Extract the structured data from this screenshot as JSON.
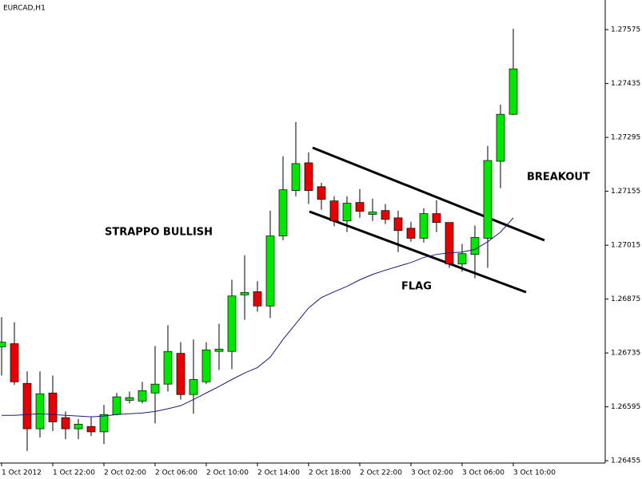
{
  "chart_data": {
    "type": "candlestick",
    "title": "EURCAD,H1",
    "categories": [
      "1 Oct 2012",
      null,
      null,
      null,
      "1 Oct 22:00",
      null,
      null,
      null,
      "2 Oct 02:00",
      null,
      null,
      null,
      "2 Oct 06:00",
      null,
      null,
      null,
      "2 Oct 10:00",
      null,
      null,
      null,
      "2 Oct 14:00",
      null,
      null,
      null,
      "2 Oct 18:00",
      null,
      null,
      null,
      "2 Oct 22:00",
      null,
      null,
      null,
      "3 Oct 02:00",
      null,
      null,
      null,
      "3 Oct 06:00",
      null,
      null,
      null,
      "3 Oct 10:00"
    ],
    "open": [
      1.26751,
      1.26759,
      1.26656,
      1.26538,
      1.26631,
      1.26567,
      1.26538,
      1.26544,
      1.2653,
      1.26575,
      1.26612,
      1.2661,
      1.26631,
      1.26654,
      1.26734,
      1.26627,
      1.2666,
      1.26739,
      1.26739,
      1.26886,
      1.26894,
      1.26857,
      1.27039,
      1.27157,
      1.27229,
      1.27167,
      1.2713,
      1.27078,
      1.27126,
      1.27095,
      1.27105,
      1.27086,
      1.27059,
      1.27033,
      1.27097,
      1.27074,
      1.26966,
      1.26991,
      1.27033,
      1.27233,
      1.27355
    ],
    "high": [
      1.26828,
      1.26815,
      1.26687,
      1.26687,
      1.26676,
      1.26583,
      1.26563,
      1.26569,
      1.266,
      1.26631,
      1.26635,
      1.2666,
      1.26753,
      1.26807,
      1.26763,
      1.2677,
      1.26763,
      1.26811,
      1.26925,
      1.26989,
      1.26921,
      1.27105,
      1.27246,
      1.27335,
      1.27256,
      1.27177,
      1.27142,
      1.27142,
      1.27161,
      1.27136,
      1.27122,
      1.27105,
      1.27076,
      1.27111,
      1.27132,
      1.27074,
      1.27018,
      1.27066,
      1.27273,
      1.2738,
      1.27577
    ],
    "low": [
      1.26676,
      1.26652,
      1.2648,
      1.26515,
      1.26532,
      1.26511,
      1.26511,
      1.26519,
      1.26498,
      1.26573,
      1.26604,
      1.26604,
      1.26552,
      1.26635,
      1.26614,
      1.26577,
      1.26654,
      1.26691,
      1.26693,
      1.26821,
      1.26842,
      1.26826,
      1.27028,
      1.27142,
      1.27122,
      1.27107,
      1.27064,
      1.27049,
      1.27086,
      1.27078,
      1.2707,
      1.26997,
      1.27024,
      1.27022,
      1.27049,
      1.26956,
      1.26946,
      1.26929,
      1.26956,
      1.27163,
      1.27353
    ],
    "close": [
      1.26763,
      1.2666,
      1.26538,
      1.26629,
      1.26556,
      1.26538,
      1.2655,
      1.2653,
      1.26575,
      1.26621,
      1.26619,
      1.26637,
      1.26654,
      1.26739,
      1.26627,
      1.26666,
      1.26743,
      1.26745,
      1.26883,
      1.26892,
      1.26857,
      1.27039,
      1.27159,
      1.27227,
      1.27157,
      1.27134,
      1.27078,
      1.27124,
      1.27103,
      1.27101,
      1.27082,
      1.27053,
      1.27033,
      1.27097,
      1.27074,
      1.26966,
      1.26993,
      1.27035,
      1.27235,
      1.27355,
      1.27473
    ],
    "moving_average": {
      "color": "#1a1a80",
      "values": [
        1.26573,
        1.26573,
        1.26575,
        1.26577,
        1.26575,
        1.26573,
        1.26571,
        1.26569,
        1.26571,
        1.26575,
        1.26577,
        1.26579,
        1.26583,
        1.2659,
        1.26598,
        1.26614,
        1.26631,
        1.26648,
        1.26666,
        1.26683,
        1.26697,
        1.26724,
        1.2677,
        1.26811,
        1.26852,
        1.26879,
        1.26894,
        1.26908,
        1.26925,
        1.26939,
        1.2695,
        1.2696,
        1.2697,
        1.26983,
        1.26991,
        1.26995,
        1.26997,
        1.27004,
        1.27024,
        1.27049,
        1.27086
      ]
    },
    "up_color": "#00e600",
    "down_color": "#e60000",
    "ylim": [
      1.26449,
      1.27652
    ],
    "yticks": [
      1.26455,
      1.26595,
      1.26735,
      1.26875,
      1.27015,
      1.27155,
      1.27295,
      1.27435,
      1.27575
    ],
    "annotations": [
      "STRAPPO BULLISH",
      "FLAG",
      "BREAKOUT"
    ]
  }
}
